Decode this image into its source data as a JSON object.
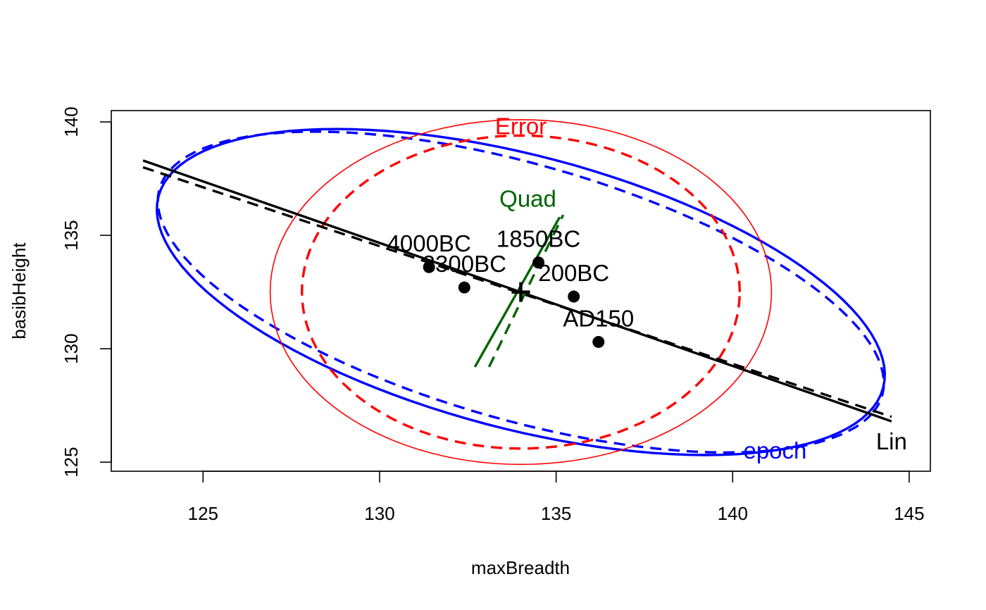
{
  "chart_data": {
    "type": "scatter",
    "title": "",
    "xlabel": "maxBreadth",
    "ylabel": "basibHeight",
    "xlim": [
      122.4,
      145.6
    ],
    "ylim": [
      124.6,
      140.5
    ],
    "x_ticks": [
      "125",
      "130",
      "135",
      "140",
      "145"
    ],
    "x_tick_values": [
      125,
      130,
      135,
      140,
      145
    ],
    "y_ticks": [
      "125",
      "130",
      "135",
      "140"
    ],
    "y_tick_values": [
      125,
      130,
      135,
      140
    ],
    "grid": false,
    "points": [
      {
        "label": "4000BC",
        "x": 131.4,
        "y": 133.6
      },
      {
        "label": "3300BC",
        "x": 132.4,
        "y": 132.7
      },
      {
        "label": "1850BC",
        "x": 134.5,
        "y": 133.8
      },
      {
        "label": "200BC",
        "x": 135.5,
        "y": 132.3
      },
      {
        "label": "AD150",
        "x": 136.2,
        "y": 130.3
      }
    ],
    "centroid": {
      "x": 134.0,
      "y": 132.5
    },
    "ellipses": [
      {
        "name": "epoch",
        "color": "#0000ff",
        "center": [
          134.0,
          132.5
        ],
        "a": 11.2,
        "b": 5.7,
        "angle_deg": -27,
        "dashed": false,
        "label_anchor": [
          141.2,
          125.5
        ]
      },
      {
        "name": "epoch",
        "color": "#0000ff",
        "center": [
          134.0,
          132.5
        ],
        "a": 11.3,
        "b": 5.3,
        "angle_deg": -28,
        "dashed": true
      },
      {
        "name": "Error",
        "color": "#ff0000",
        "center": [
          134.0,
          132.5
        ],
        "a": 7.1,
        "b": 7.6,
        "angle_deg": 0,
        "dashed": false,
        "label_anchor": [
          134.0,
          139.8
        ]
      },
      {
        "name": "Error",
        "color": "#ff0000",
        "center": [
          134.0,
          132.5
        ],
        "a": 6.2,
        "b": 6.9,
        "angle_deg": 0,
        "dashed": true
      }
    ],
    "lines": [
      {
        "name": "Lin",
        "color": "#000000",
        "from": [
          123.3,
          138.3
        ],
        "to": [
          144.5,
          126.8
        ],
        "dashed": false,
        "label_anchor": [
          144.5,
          125.9
        ]
      },
      {
        "name": "Lin",
        "color": "#000000",
        "from": [
          123.3,
          138.0
        ],
        "to": [
          144.5,
          127.0
        ],
        "dashed": true
      },
      {
        "name": "Quad",
        "color": "#006400",
        "from": [
          132.7,
          129.2
        ],
        "to": [
          135.1,
          135.8
        ],
        "dashed": false,
        "label_anchor": [
          134.2,
          136.6
        ]
      },
      {
        "name": "Quad",
        "color": "#006400",
        "from": [
          133.1,
          129.2
        ],
        "to": [
          135.2,
          135.9
        ],
        "dashed": true
      }
    ]
  }
}
